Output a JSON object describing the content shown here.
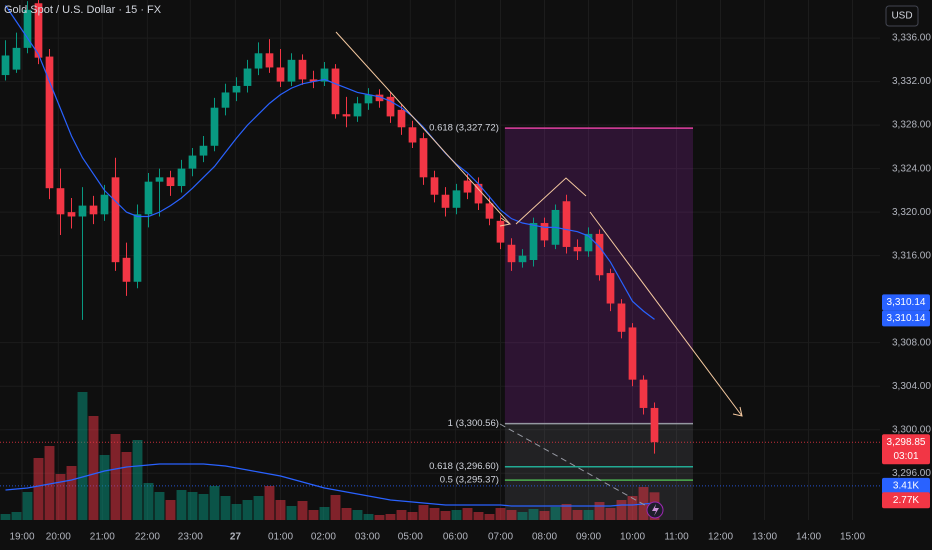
{
  "chart_data": {
    "type": "candlestick",
    "title": "Gold Spot / U.S. Dollar · 15 · FX",
    "currency": "USD",
    "up_color": "#089981",
    "down_color": "#f23645",
    "ma_color": "#2962ff",
    "xlim": [
      -0.5,
      79.5
    ],
    "ylim": [
      3291.7,
      3339.5
    ],
    "vlim": [
      0,
      14
    ],
    "grid": true,
    "xticks": [
      {
        "value": 1.5,
        "label": "19:00"
      },
      {
        "value": 4.8,
        "label": "20:00"
      },
      {
        "value": 8.8,
        "label": "21:00"
      },
      {
        "value": 12.9,
        "label": "22:00"
      },
      {
        "value": 16.8,
        "label": "23:00"
      },
      {
        "value": 20.9,
        "label": "27"
      },
      {
        "value": 25,
        "label": "01:00"
      },
      {
        "value": 28.9,
        "label": "02:00"
      },
      {
        "value": 32.9,
        "label": "03:00"
      },
      {
        "value": 36.8,
        "label": "05:00"
      },
      {
        "value": 40.9,
        "label": "06:00"
      },
      {
        "value": 45,
        "label": "07:00"
      },
      {
        "value": 49,
        "label": "08:00"
      },
      {
        "value": 53,
        "label": "09:00"
      },
      {
        "value": 57,
        "label": "10:00"
      },
      {
        "value": 61,
        "label": "11:00"
      },
      {
        "value": 65,
        "label": "12:00"
      },
      {
        "value": 69,
        "label": "13:00"
      },
      {
        "value": 73,
        "label": "14:00"
      },
      {
        "value": 77,
        "label": "15:00"
      }
    ],
    "yticks": [
      {
        "value": 3296,
        "label": "3,296.00"
      },
      {
        "value": 3300,
        "label": "3,300.00"
      },
      {
        "value": 3304,
        "label": "3,304.00"
      },
      {
        "value": 3308,
        "label": "3,308.00"
      },
      {
        "value": 3316,
        "label": "3,316.00"
      },
      {
        "value": 3320,
        "label": "3,320.00"
      },
      {
        "value": 3324,
        "label": "3,324.00"
      },
      {
        "value": 3328,
        "label": "3,328.00"
      },
      {
        "value": 3332,
        "label": "3,332.00"
      },
      {
        "value": 3336,
        "label": "3,336.00"
      }
    ],
    "x": [
      0,
      1,
      2,
      3,
      4,
      5,
      6,
      7,
      8,
      9,
      10,
      11,
      12,
      13,
      14,
      15,
      16,
      17,
      18,
      19,
      20,
      21,
      22,
      23,
      24,
      25,
      26,
      27,
      28,
      29,
      30,
      31,
      32,
      33,
      34,
      35,
      36,
      37,
      38,
      39,
      40,
      41,
      42,
      43,
      44,
      45,
      46,
      47,
      48,
      49,
      50,
      51,
      52,
      53,
      54,
      55,
      56,
      57,
      58,
      59
    ],
    "open": [
      3332.6,
      3333.1,
      3335.1,
      3339.2,
      3334.3,
      3322.2,
      3320.0,
      3319.6,
      3320.6,
      3319.8,
      3323.2,
      3315.8,
      3313.6,
      3319.8,
      3322.8,
      3323.2,
      3322.4,
      3324.0,
      3325.2,
      3326.1,
      3329.6,
      3331.0,
      3331.6,
      3333.2,
      3334.6,
      3333.3,
      3332.0,
      3334.0,
      3332.2,
      3332.0,
      3333.2,
      3329.0,
      3328.8,
      3330.0,
      3330.8,
      3330.6,
      3329.4,
      3327.8,
      3326.8,
      3323.2,
      3321.6,
      3320.4,
      3322.9,
      3322.6,
      3320.8,
      3319.2,
      3317.0,
      3315.4,
      3315.6,
      3319.0,
      3317.0,
      3321.0,
      3316.8,
      3316.4,
      3318.0,
      3314.4,
      3311.6,
      3309.4,
      3304.6,
      3302.0
    ],
    "high": [
      3335.8,
      3336.5,
      3339.4,
      3339.5,
      3335.0,
      3324.0,
      3321.3,
      3322.3,
      3321.5,
      3322.5,
      3325.0,
      3317.2,
      3320.7,
      3323.6,
      3324.0,
      3323.8,
      3324.8,
      3325.9,
      3327.0,
      3330.5,
      3331.8,
      3332.4,
      3334.0,
      3335.6,
      3335.9,
      3335.0,
      3334.6,
      3334.5,
      3333.0,
      3333.8,
      3333.6,
      3330.6,
      3330.6,
      3331.4,
      3331.3,
      3331.0,
      3329.9,
      3328.4,
      3327.3,
      3323.8,
      3322.3,
      3322.6,
      3323.5,
      3323.2,
      3321.5,
      3319.7,
      3317.6,
      3316.6,
      3319.5,
      3319.5,
      3320.7,
      3321.6,
      3317.5,
      3318.6,
      3318.4,
      3314.8,
      3312.0,
      3309.8,
      3305.0,
      3302.5
    ],
    "low": [
      3332.1,
      3332.8,
      3334.6,
      3333.6,
      3321.2,
      3317.9,
      3318.5,
      3310.1,
      3318.9,
      3319.2,
      3314.6,
      3312.3,
      3313.0,
      3318.6,
      3319.6,
      3321.5,
      3321.8,
      3323.3,
      3324.6,
      3325.6,
      3328.9,
      3330.2,
      3331.0,
      3332.6,
      3332.8,
      3331.5,
      3331.6,
      3331.7,
      3331.4,
      3331.6,
      3328.6,
      3327.8,
      3328.3,
      3329.4,
      3329.6,
      3328.2,
      3327.1,
      3325.9,
      3322.5,
      3320.9,
      3319.6,
      3319.8,
      3321.2,
      3320.2,
      3318.8,
      3316.6,
      3314.6,
      3314.9,
      3315.0,
      3316.8,
      3316.6,
      3316.2,
      3315.6,
      3315.9,
      3313.7,
      3310.9,
      3308.4,
      3304.0,
      3301.4,
      3297.8
    ],
    "close": [
      3334.4,
      3335.1,
      3338.6,
      3334.2,
      3322.2,
      3319.8,
      3319.6,
      3320.6,
      3319.8,
      3321.6,
      3315.4,
      3313.6,
      3319.8,
      3322.8,
      3323.2,
      3322.4,
      3324.0,
      3325.2,
      3326.1,
      3329.6,
      3331.0,
      3331.6,
      3333.2,
      3334.6,
      3333.3,
      3332.0,
      3334.0,
      3332.2,
      3332.0,
      3333.2,
      3329.0,
      3328.8,
      3330.0,
      3330.8,
      3330.2,
      3328.8,
      3327.8,
      3326.4,
      3323.2,
      3321.6,
      3320.4,
      3322.0,
      3321.8,
      3320.8,
      3319.4,
      3317.2,
      3315.4,
      3316.0,
      3319.0,
      3317.4,
      3320.2,
      3316.8,
      3316.4,
      3318.0,
      3314.2,
      3311.6,
      3309.0,
      3304.6,
      3302.0,
      3298.85
    ],
    "volume": [
      0.6,
      0.8,
      2.8,
      6.2,
      7.4,
      4.6,
      5.4,
      12.8,
      10.4,
      6.5,
      8.6,
      6.8,
      8.0,
      3.7,
      2.8,
      2.0,
      3.0,
      2.8,
      2.6,
      3.4,
      2.4,
      1.6,
      2.0,
      2.4,
      3.4,
      2.0,
      1.4,
      1.9,
      1.0,
      1.3,
      2.5,
      1.2,
      1.0,
      0.6,
      0.5,
      0.6,
      1.0,
      0.8,
      1.5,
      1.2,
      0.9,
      1.0,
      1.2,
      0.8,
      0.6,
      1.2,
      1.0,
      0.8,
      1.1,
      0.9,
      1.3,
      1.6,
      1.0,
      1.0,
      1.8,
      1.2,
      2.0,
      2.4,
      3.3,
      2.77
    ],
    "ma": [
      3339,
      3337.5,
      3336,
      3334.5,
      3332,
      3329.5,
      3327,
      3325,
      3323.5,
      3322,
      3321,
      3320,
      3319.6,
      3319.6,
      3320,
      3320.6,
      3321.3,
      3322.2,
      3323.2,
      3324.2,
      3325.5,
      3326.8,
      3328,
      3329,
      3330,
      3330.8,
      3331.4,
      3331.8,
      3332,
      3332.2,
      3331.8,
      3331.4,
      3331,
      3330.8,
      3330.6,
      3330.2,
      3329.6,
      3328.8,
      3327.8,
      3326.6,
      3325.4,
      3324.4,
      3323.6,
      3322.6,
      3321.4,
      3320.2,
      3319.4,
      3319,
      3318.8,
      3318.6,
      3318.6,
      3318.4,
      3318.2,
      3317.8,
      3316.8,
      3315.4,
      3313.6,
      3311.8,
      3310.9,
      3310.14
    ],
    "volume_ma": [
      3.0,
      3.1,
      3.2,
      3.4,
      3.6,
      3.8,
      4.0,
      4.3,
      4.6,
      4.9,
      5.1,
      5.3,
      5.4,
      5.5,
      5.6,
      5.6,
      5.6,
      5.6,
      5.6,
      5.5,
      5.4,
      5.2,
      5.0,
      4.8,
      4.6,
      4.4,
      4.1,
      3.8,
      3.5,
      3.2,
      3.0,
      2.8,
      2.6,
      2.4,
      2.2,
      2.0,
      1.9,
      1.8,
      1.7,
      1.6,
      1.5,
      1.5,
      1.5,
      1.5,
      1.5,
      1.5,
      1.4,
      1.4,
      1.4,
      1.4,
      1.4,
      1.4,
      1.4,
      1.4,
      1.4,
      1.4,
      1.5,
      1.5,
      1.6,
      1.7
    ],
    "fib_levels": [
      {
        "label": "0.618 (3,327.72)",
        "value": 3327.72,
        "color": "#e040a0"
      },
      {
        "label": "1 (3,300.56)",
        "value": 3300.56,
        "color": "#9598a1"
      },
      {
        "label": "0.618 (3,296.60)",
        "value": 3296.6,
        "color": "#22ab94"
      },
      {
        "label": "0.5 (3,295.37)",
        "value": 3295.37,
        "color": "#4caf50"
      }
    ],
    "price_labels": [
      {
        "value": 3310.14,
        "label": "3,310.14",
        "color": "#2962ff"
      },
      {
        "value": 3310.14,
        "label": "3,310.14",
        "color": "#2962ff"
      },
      {
        "value": 3298.85,
        "label": "3,298.85",
        "color": "#f23645",
        "countdown": "03:01"
      }
    ],
    "volume_labels": [
      {
        "value": 3.41,
        "label": "3.41K",
        "color": "#2962ff"
      },
      {
        "value": 2.77,
        "label": "2.77K",
        "color": "#f23645"
      }
    ]
  }
}
